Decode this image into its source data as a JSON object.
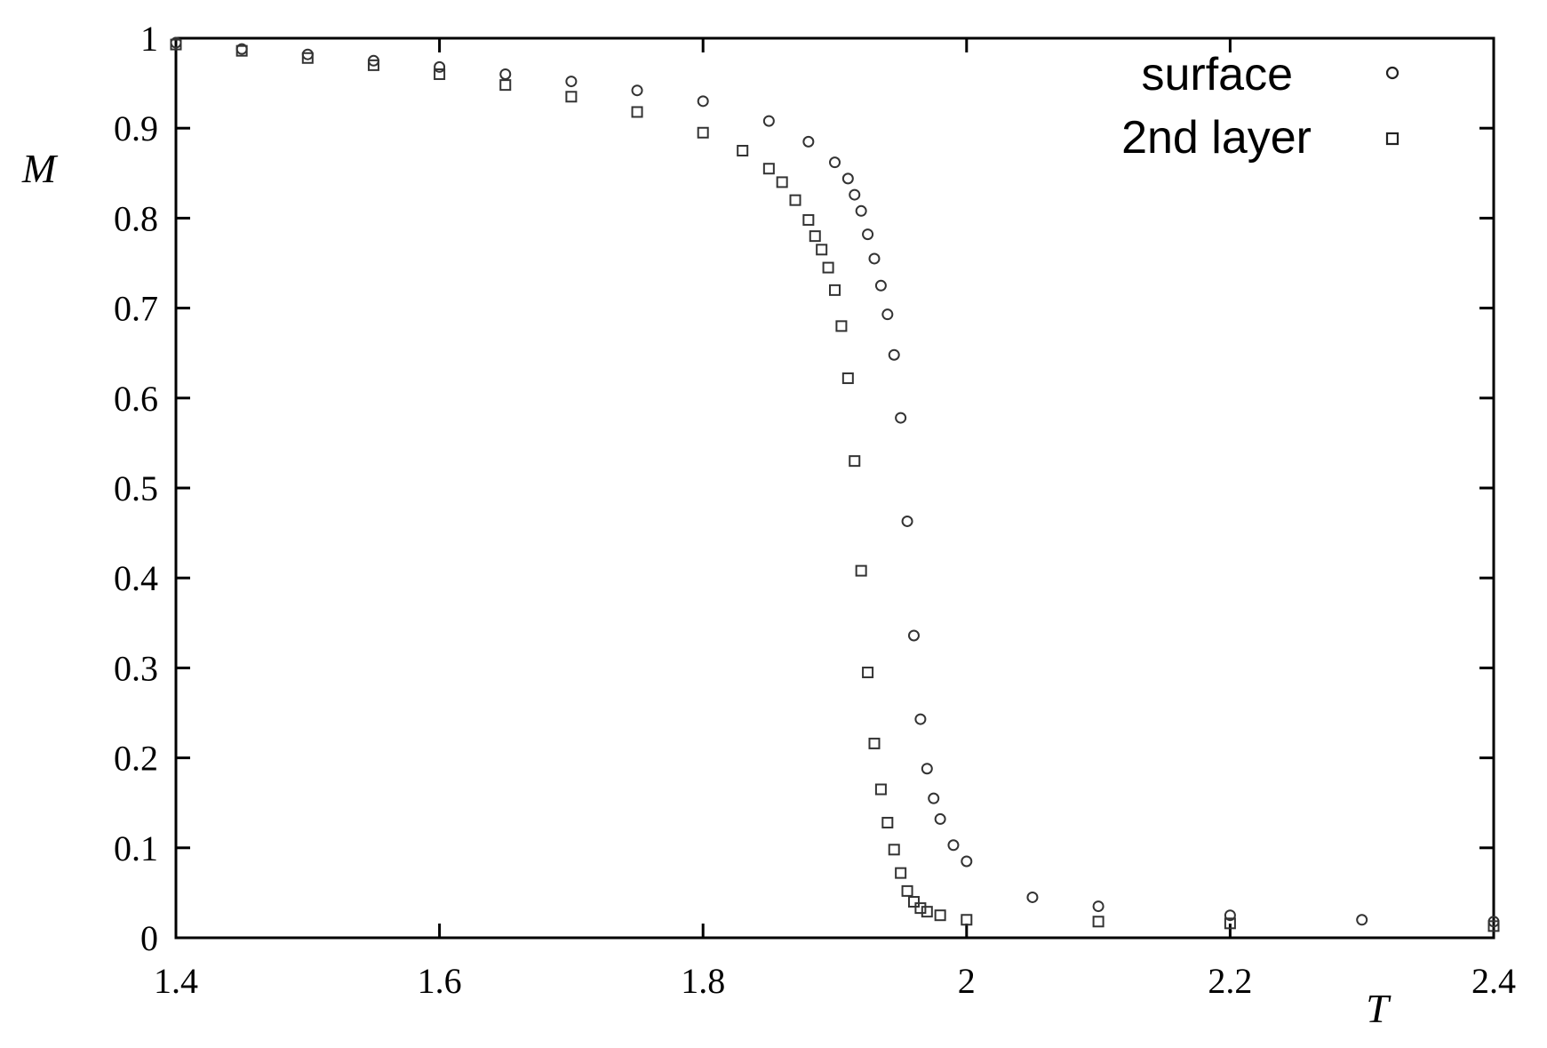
{
  "chart_data": {
    "type": "scatter",
    "title": "",
    "xlabel": "T",
    "ylabel": "M",
    "xlim": [
      1.4,
      2.4
    ],
    "ylim": [
      0,
      1
    ],
    "x_ticks": [
      "1.4",
      "1.6",
      "1.8",
      "2",
      "2.2",
      "2.4"
    ],
    "y_ticks": [
      "0",
      "0.1",
      "0.2",
      "0.3",
      "0.4",
      "0.5",
      "0.6",
      "0.7",
      "0.8",
      "0.9",
      "1"
    ],
    "grid": false,
    "legend_position": "top-right",
    "series": [
      {
        "name": "surface",
        "marker": "circle",
        "x": [
          1.4,
          1.45,
          1.5,
          1.55,
          1.6,
          1.65,
          1.7,
          1.75,
          1.8,
          1.85,
          1.88,
          1.9,
          1.91,
          1.915,
          1.92,
          1.925,
          1.93,
          1.935,
          1.94,
          1.945,
          1.95,
          1.955,
          1.96,
          1.965,
          1.97,
          1.975,
          1.98,
          1.99,
          2.0,
          2.05,
          2.1,
          2.2,
          2.3,
          2.4
        ],
        "y": [
          0.995,
          0.988,
          0.982,
          0.975,
          0.968,
          0.96,
          0.952,
          0.942,
          0.93,
          0.908,
          0.885,
          0.862,
          0.844,
          0.826,
          0.808,
          0.782,
          0.755,
          0.725,
          0.693,
          0.648,
          0.578,
          0.463,
          0.336,
          0.243,
          0.188,
          0.155,
          0.132,
          0.103,
          0.085,
          0.045,
          0.035,
          0.025,
          0.02,
          0.018
        ]
      },
      {
        "name": "2nd layer",
        "marker": "square",
        "x": [
          1.4,
          1.45,
          1.5,
          1.55,
          1.6,
          1.65,
          1.7,
          1.75,
          1.8,
          1.83,
          1.85,
          1.86,
          1.87,
          1.88,
          1.885,
          1.89,
          1.895,
          1.9,
          1.905,
          1.91,
          1.915,
          1.92,
          1.925,
          1.93,
          1.935,
          1.94,
          1.945,
          1.95,
          1.955,
          1.96,
          1.965,
          1.97,
          1.98,
          2.0,
          2.1,
          2.2,
          2.4
        ],
        "y": [
          0.993,
          0.986,
          0.978,
          0.97,
          0.96,
          0.948,
          0.935,
          0.918,
          0.895,
          0.875,
          0.855,
          0.84,
          0.82,
          0.798,
          0.78,
          0.765,
          0.745,
          0.72,
          0.68,
          0.622,
          0.53,
          0.408,
          0.295,
          0.216,
          0.165,
          0.128,
          0.098,
          0.072,
          0.052,
          0.04,
          0.033,
          0.029,
          0.025,
          0.02,
          0.018,
          0.016,
          0.013
        ]
      }
    ]
  }
}
